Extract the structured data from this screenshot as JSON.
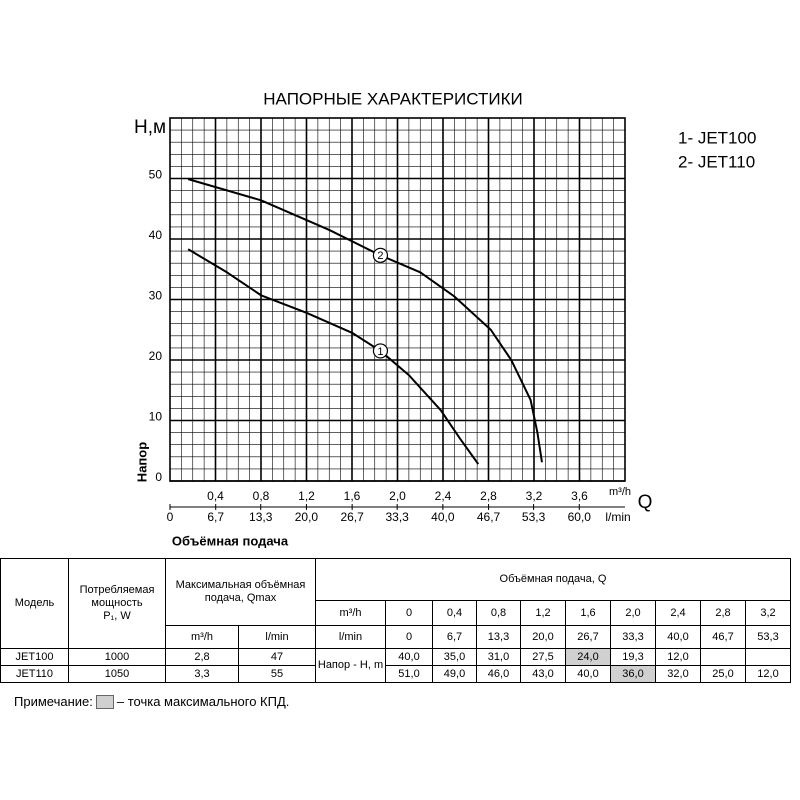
{
  "chart_data": {
    "type": "line",
    "title": "НАПОРНЫЕ ХАРАКТЕРИСТИКИ",
    "ylabel": "Н,м",
    "ylabel2": "Напор",
    "xlabel": "Объёмная подача",
    "xunit": "m³/h",
    "xsymbol": "Q",
    "x2unit": "l/min",
    "xlim": [
      0,
      4.0
    ],
    "xticks": [
      {
        "value": 0.4,
        "label": "0,4"
      },
      {
        "value": 0.8,
        "label": "0,8"
      },
      {
        "value": 1.2,
        "label": "1,2"
      },
      {
        "value": 1.6,
        "label": "1,6"
      },
      {
        "value": 2.0,
        "label": "2,0"
      },
      {
        "value": 2.4,
        "label": "2,4"
      },
      {
        "value": 2.8,
        "label": "2,8"
      },
      {
        "value": 3.2,
        "label": "3,2"
      },
      {
        "value": 3.6,
        "label": "3,6"
      }
    ],
    "x2lim": [
      0,
      66.7
    ],
    "x2ticks": [
      0,
      {
        "value": 6.7,
        "label": "6,7"
      },
      {
        "value": 13.3,
        "label": "13,3"
      },
      {
        "value": 20.0,
        "label": "20,0"
      },
      {
        "value": 26.7,
        "label": "26,7"
      },
      {
        "value": 33.3,
        "label": "33,3"
      },
      {
        "value": 40.0,
        "label": "40,0"
      },
      {
        "value": 46.7,
        "label": "46,7"
      },
      {
        "value": 53.3,
        "label": "53,3"
      },
      {
        "value": 60.0,
        "label": "60,0"
      }
    ],
    "ylim": [
      0,
      60
    ],
    "yticks": [
      0,
      10,
      20,
      30,
      40,
      50
    ],
    "grid": true,
    "series": [
      {
        "name": "1- JET100",
        "color": "#000000",
        "x": [
          0.16,
          0.5,
          0.8,
          1.2,
          1.6,
          1.85,
          2.1,
          2.38,
          2.55,
          2.71
        ],
        "y": [
          38.3,
          34.5,
          30.7,
          27.8,
          24.5,
          21.5,
          17.5,
          11.7,
          7,
          2.8
        ]
      },
      {
        "name": "2- JET110",
        "color": "#000000",
        "x": [
          0.16,
          0.8,
          1.4,
          1.85,
          2.2,
          2.5,
          2.82,
          3.0,
          3.17,
          3.23,
          3.27
        ],
        "y": [
          49.9,
          46.4,
          41.5,
          37.3,
          34.5,
          30.5,
          25,
          20,
          13.4,
          8,
          3.1
        ]
      }
    ],
    "annotations": [
      {
        "text": "1",
        "x": 1.85,
        "y": 21.5
      },
      {
        "text": "2",
        "x": 1.85,
        "y": 37.3
      }
    ]
  },
  "table": {
    "model": "Модель",
    "power": "Потребляемая мощность",
    "power_unit": "P₁, W",
    "qmax": "Максимальная объёмная подача, Qmax",
    "qmax_m3h": "m³/h",
    "qmax_lmin": "l/min",
    "flow": "Объёмная подача, Q",
    "row_m3h": "m³/h",
    "row_lmin": "l/min",
    "q_m3h": [
      "0",
      "0,4",
      "0,8",
      "1,2",
      "1,6",
      "2,0",
      "2,4",
      "2,8",
      "3,2"
    ],
    "q_lmin": [
      "0",
      "6,7",
      "13,3",
      "20,0",
      "26,7",
      "33,3",
      "40,0",
      "46,7",
      "53,3"
    ],
    "head_label": "Напор - H, m",
    "rows": [
      {
        "model": "JET100",
        "power": "1000",
        "qmax_m3h": "2,8",
        "qmax_lmin": "47",
        "head": [
          "40,0",
          "35,0",
          "31,0",
          "27,5",
          "24,0",
          "19,3",
          "12,0"
        ],
        "highlight": 4
      },
      {
        "model": "JET110",
        "power": "1050",
        "qmax_m3h": "3,3",
        "qmax_lmin": "55",
        "head": [
          "51,0",
          "49,0",
          "46,0",
          "43,0",
          "40,0",
          "36,0",
          "32,0",
          "25,0",
          "12,0"
        ],
        "highlight": 5
      }
    ]
  },
  "note": {
    "label": "Примечание:",
    "text": "– точка максимального КПД."
  }
}
